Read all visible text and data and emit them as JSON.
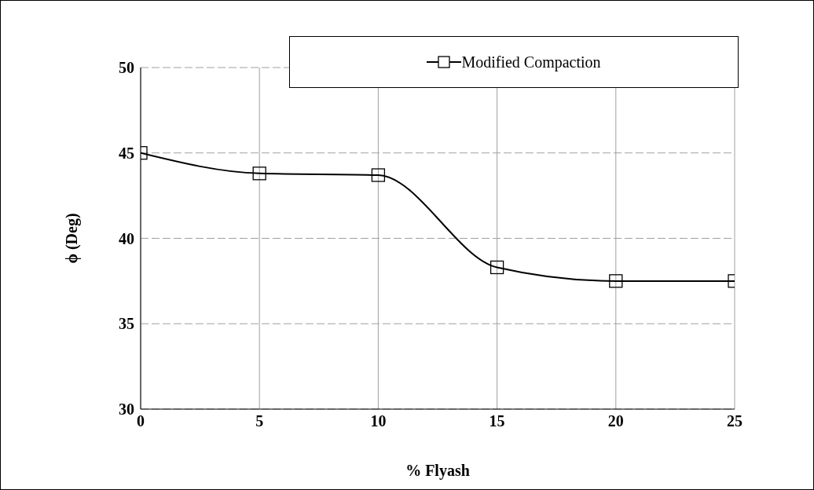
{
  "chart_data": {
    "type": "line",
    "xlabel": "% Flyash",
    "ylabel": "ϕ  (Deg)",
    "x": [
      0,
      5,
      10,
      15,
      20,
      25
    ],
    "series": [
      {
        "name": "Modified Compaction",
        "color": "#000000",
        "values": [
          45,
          43.8,
          43.7,
          38.3,
          37.5,
          37.5
        ]
      }
    ],
    "xlim": [
      0,
      25
    ],
    "xticks": [
      0,
      5,
      10,
      15,
      20,
      25
    ],
    "ylim": [
      30,
      50
    ],
    "yticks": [
      30,
      35,
      40,
      45,
      50
    ],
    "grid": true,
    "legend": "top right",
    "marker": "square",
    "line_style": "solid"
  }
}
